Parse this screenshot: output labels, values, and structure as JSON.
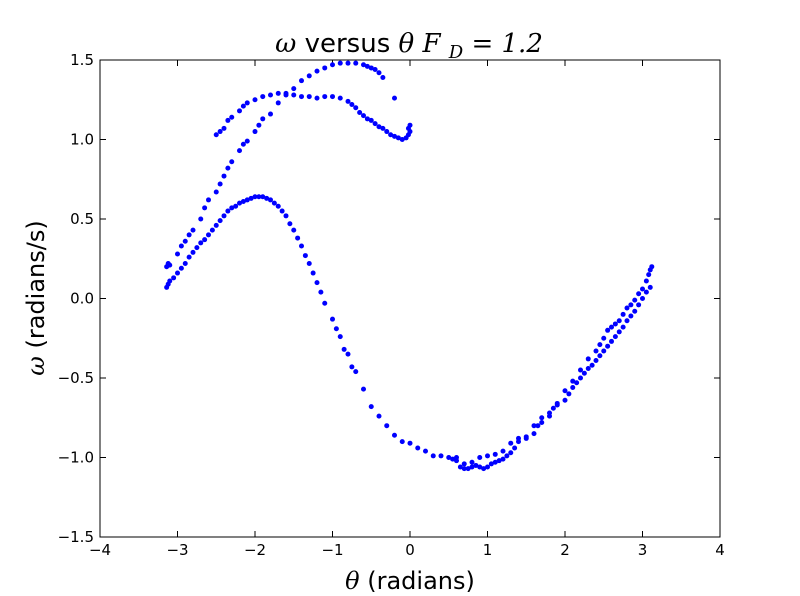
{
  "chart_data": {
    "type": "scatter",
    "title": {
      "omega_symbol": "ω",
      "versus_text": " versus ",
      "theta_symbol": "θ",
      "force_symbol": "F",
      "force_subscript": "D",
      "equals": " = ",
      "force_value": "1.2"
    },
    "xlabel": {
      "symbol": "θ",
      "text": "(radians)"
    },
    "ylabel": {
      "symbol": "ω",
      "text": "(radians/s)"
    },
    "xlim": [
      -4,
      4
    ],
    "ylim": [
      -1.5,
      1.5
    ],
    "x_ticks": [
      -4,
      -3,
      -2,
      -1,
      0,
      1,
      2,
      3,
      4
    ],
    "x_tick_labels": [
      "−4",
      "−3",
      "−2",
      "−1",
      "0",
      "1",
      "2",
      "3",
      "4"
    ],
    "y_ticks": [
      -1.5,
      -1.0,
      -0.5,
      0.0,
      0.5,
      1.0,
      1.5
    ],
    "y_tick_labels": [
      "−1.5",
      "−1.0",
      "−0.5",
      "0.0",
      "0.5",
      "1.0",
      "1.5"
    ],
    "grid": false,
    "marker_color": "#0000ff",
    "series": [
      {
        "values_description": "upper branch, outer arc",
        "points": [
          [
            -3.14,
            0.2
          ],
          [
            -3.12,
            0.22
          ],
          [
            -3.1,
            0.21
          ],
          [
            -3.0,
            0.28
          ],
          [
            -2.95,
            0.33
          ],
          [
            -2.9,
            0.36
          ],
          [
            -2.85,
            0.4
          ],
          [
            -2.8,
            0.43
          ],
          [
            -2.7,
            0.5
          ],
          [
            -2.65,
            0.57
          ],
          [
            -2.6,
            0.62
          ],
          [
            -2.5,
            0.67
          ],
          [
            -2.45,
            0.72
          ],
          [
            -2.4,
            0.77
          ],
          [
            -2.35,
            0.82
          ],
          [
            -2.3,
            0.86
          ],
          [
            -2.2,
            0.93
          ],
          [
            -2.15,
            0.97
          ],
          [
            -2.1,
            0.99
          ],
          [
            -2.0,
            1.05
          ],
          [
            -1.95,
            1.09
          ],
          [
            -1.9,
            1.13
          ],
          [
            -1.8,
            1.16
          ],
          [
            -1.7,
            1.23
          ],
          [
            -1.6,
            1.28
          ],
          [
            -1.5,
            1.32
          ],
          [
            -1.4,
            1.37
          ],
          [
            -1.3,
            1.4
          ],
          [
            -1.2,
            1.43
          ],
          [
            -1.1,
            1.45
          ],
          [
            -1.0,
            1.47
          ],
          [
            -0.9,
            1.48
          ],
          [
            -0.8,
            1.48
          ],
          [
            -0.7,
            1.48
          ],
          [
            -0.6,
            1.47
          ],
          [
            -0.55,
            1.46
          ],
          [
            -0.5,
            1.45
          ],
          [
            -0.45,
            1.44
          ],
          [
            -0.4,
            1.42
          ],
          [
            -0.35,
            1.39
          ],
          [
            -0.2,
            1.26
          ]
        ]
      },
      {
        "values_description": "upper branch, inner arc",
        "points": [
          [
            -2.5,
            1.03
          ],
          [
            -2.45,
            1.05
          ],
          [
            -2.4,
            1.07
          ],
          [
            -2.35,
            1.12
          ],
          [
            -2.3,
            1.14
          ],
          [
            -2.2,
            1.18
          ],
          [
            -2.15,
            1.21
          ],
          [
            -2.1,
            1.23
          ],
          [
            -2.0,
            1.25
          ],
          [
            -1.9,
            1.27
          ],
          [
            -1.8,
            1.28
          ],
          [
            -1.7,
            1.29
          ],
          [
            -1.6,
            1.29
          ],
          [
            -1.5,
            1.28
          ],
          [
            -1.4,
            1.27
          ],
          [
            -1.3,
            1.27
          ],
          [
            -1.2,
            1.26
          ],
          [
            -1.1,
            1.27
          ],
          [
            -1.0,
            1.27
          ],
          [
            -0.9,
            1.26
          ],
          [
            -0.8,
            1.24
          ],
          [
            -0.75,
            1.22
          ],
          [
            -0.7,
            1.2
          ],
          [
            -0.65,
            1.17
          ],
          [
            -0.6,
            1.15
          ],
          [
            -0.55,
            1.13
          ],
          [
            -0.5,
            1.12
          ],
          [
            -0.45,
            1.1
          ],
          [
            -0.4,
            1.08
          ],
          [
            -0.35,
            1.07
          ],
          [
            -0.3,
            1.05
          ],
          [
            -0.25,
            1.03
          ],
          [
            -0.2,
            1.02
          ],
          [
            -0.15,
            1.01
          ],
          [
            -0.1,
            1.0
          ],
          [
            -0.05,
            1.01
          ],
          [
            -0.02,
            1.03
          ],
          [
            0.0,
            1.05
          ],
          [
            -0.02,
            1.07
          ],
          [
            0.0,
            1.09
          ]
        ]
      },
      {
        "values_description": "lower branch, left arc",
        "points": [
          [
            -3.14,
            0.07
          ],
          [
            -3.12,
            0.09
          ],
          [
            -3.1,
            0.11
          ],
          [
            -3.05,
            0.13
          ],
          [
            -3.0,
            0.16
          ],
          [
            -2.95,
            0.19
          ],
          [
            -2.9,
            0.22
          ],
          [
            -2.85,
            0.26
          ],
          [
            -2.8,
            0.29
          ],
          [
            -2.75,
            0.32
          ],
          [
            -2.7,
            0.35
          ],
          [
            -2.65,
            0.37
          ],
          [
            -2.6,
            0.4
          ],
          [
            -2.55,
            0.43
          ],
          [
            -2.5,
            0.46
          ],
          [
            -2.45,
            0.49
          ],
          [
            -2.4,
            0.52
          ],
          [
            -2.35,
            0.55
          ],
          [
            -2.3,
            0.57
          ],
          [
            -2.25,
            0.58
          ],
          [
            -2.2,
            0.6
          ],
          [
            -2.15,
            0.61
          ],
          [
            -2.1,
            0.62
          ],
          [
            -2.05,
            0.63
          ],
          [
            -2.0,
            0.64
          ],
          [
            -1.95,
            0.64
          ],
          [
            -1.9,
            0.64
          ],
          [
            -1.85,
            0.63
          ],
          [
            -1.8,
            0.62
          ],
          [
            -1.75,
            0.6
          ],
          [
            -1.7,
            0.58
          ],
          [
            -1.65,
            0.55
          ],
          [
            -1.6,
            0.52
          ],
          [
            -1.55,
            0.47
          ],
          [
            -1.5,
            0.43
          ],
          [
            -1.45,
            0.38
          ],
          [
            -1.4,
            0.33
          ],
          [
            -1.35,
            0.27
          ],
          [
            -1.3,
            0.22
          ],
          [
            -1.25,
            0.16
          ],
          [
            -1.2,
            0.1
          ],
          [
            -1.15,
            0.04
          ],
          [
            -1.1,
            -0.03
          ],
          [
            -1.0,
            -0.13
          ],
          [
            -0.95,
            -0.19
          ],
          [
            -0.9,
            -0.24
          ],
          [
            -0.85,
            -0.32
          ],
          [
            -0.8,
            -0.35
          ],
          [
            -0.75,
            -0.43
          ],
          [
            -0.7,
            -0.46
          ],
          [
            -0.6,
            -0.57
          ],
          [
            -0.5,
            -0.68
          ],
          [
            -0.4,
            -0.74
          ],
          [
            -0.3,
            -0.8
          ],
          [
            -0.2,
            -0.86
          ],
          [
            -0.1,
            -0.9
          ],
          [
            0.0,
            -0.91
          ],
          [
            0.1,
            -0.94
          ],
          [
            0.2,
            -0.96
          ]
        ]
      },
      {
        "values_description": "lower branch, trough",
        "points": [
          [
            0.3,
            -0.99
          ],
          [
            0.4,
            -0.99
          ],
          [
            0.5,
            -1.0
          ],
          [
            0.55,
            -1.01
          ],
          [
            0.6,
            -1.02
          ],
          [
            0.65,
            -1.06
          ],
          [
            0.7,
            -1.07
          ],
          [
            0.75,
            -1.07
          ],
          [
            0.8,
            -1.06
          ],
          [
            0.85,
            -1.05
          ],
          [
            0.9,
            -1.06
          ],
          [
            0.95,
            -1.07
          ],
          [
            1.0,
            -1.06
          ],
          [
            1.05,
            -1.04
          ],
          [
            1.1,
            -1.03
          ],
          [
            1.15,
            -1.02
          ],
          [
            1.2,
            -1.01
          ],
          [
            1.25,
            -0.99
          ],
          [
            1.3,
            -0.97
          ],
          [
            1.35,
            -0.94
          ],
          [
            1.4,
            -0.9
          ],
          [
            1.5,
            -0.87
          ],
          [
            1.6,
            -0.85
          ],
          [
            1.65,
            -0.8
          ],
          [
            1.7,
            -0.78
          ],
          [
            1.8,
            -0.74
          ],
          [
            1.85,
            -0.69
          ],
          [
            1.9,
            -0.67
          ],
          [
            2.0,
            -0.64
          ],
          [
            2.05,
            -0.6
          ],
          [
            2.1,
            -0.56
          ],
          [
            2.15,
            -0.53
          ],
          [
            2.2,
            -0.5
          ],
          [
            2.25,
            -0.47
          ],
          [
            2.3,
            -0.44
          ],
          [
            2.35,
            -0.42
          ],
          [
            2.4,
            -0.39
          ],
          [
            2.45,
            -0.36
          ],
          [
            2.5,
            -0.33
          ],
          [
            2.55,
            -0.3
          ],
          [
            2.6,
            -0.27
          ],
          [
            2.65,
            -0.24
          ],
          [
            2.7,
            -0.21
          ],
          [
            2.75,
            -0.18
          ],
          [
            2.8,
            -0.14
          ],
          [
            2.85,
            -0.11
          ],
          [
            2.9,
            -0.08
          ],
          [
            2.95,
            -0.04
          ],
          [
            3.0,
            0.0
          ],
          [
            3.05,
            0.04
          ],
          [
            3.1,
            0.07
          ]
        ]
      },
      {
        "values_description": "lower branch, upper edge of right rise",
        "points": [
          [
            0.6,
            -1.0
          ],
          [
            0.7,
            -1.04
          ],
          [
            0.8,
            -1.03
          ],
          [
            0.9,
            -1.0
          ],
          [
            1.0,
            -0.99
          ],
          [
            1.1,
            -0.98
          ],
          [
            1.2,
            -0.96
          ],
          [
            1.3,
            -0.91
          ],
          [
            1.4,
            -0.88
          ],
          [
            1.5,
            -0.88
          ],
          [
            1.6,
            -0.8
          ],
          [
            1.7,
            -0.75
          ],
          [
            1.8,
            -0.72
          ],
          [
            1.9,
            -0.66
          ],
          [
            2.0,
            -0.58
          ],
          [
            2.1,
            -0.52
          ],
          [
            2.2,
            -0.45
          ],
          [
            2.3,
            -0.38
          ],
          [
            2.4,
            -0.33
          ],
          [
            2.45,
            -0.29
          ],
          [
            2.5,
            -0.25
          ],
          [
            2.55,
            -0.2
          ],
          [
            2.6,
            -0.18
          ],
          [
            2.65,
            -0.16
          ],
          [
            2.7,
            -0.14
          ],
          [
            2.75,
            -0.1
          ],
          [
            2.8,
            -0.06
          ],
          [
            2.85,
            -0.04
          ],
          [
            2.9,
            -0.01
          ],
          [
            2.95,
            0.03
          ],
          [
            3.0,
            0.06
          ],
          [
            3.05,
            0.11
          ],
          [
            3.08,
            0.15
          ],
          [
            3.1,
            0.18
          ],
          [
            3.12,
            0.2
          ]
        ]
      }
    ]
  }
}
